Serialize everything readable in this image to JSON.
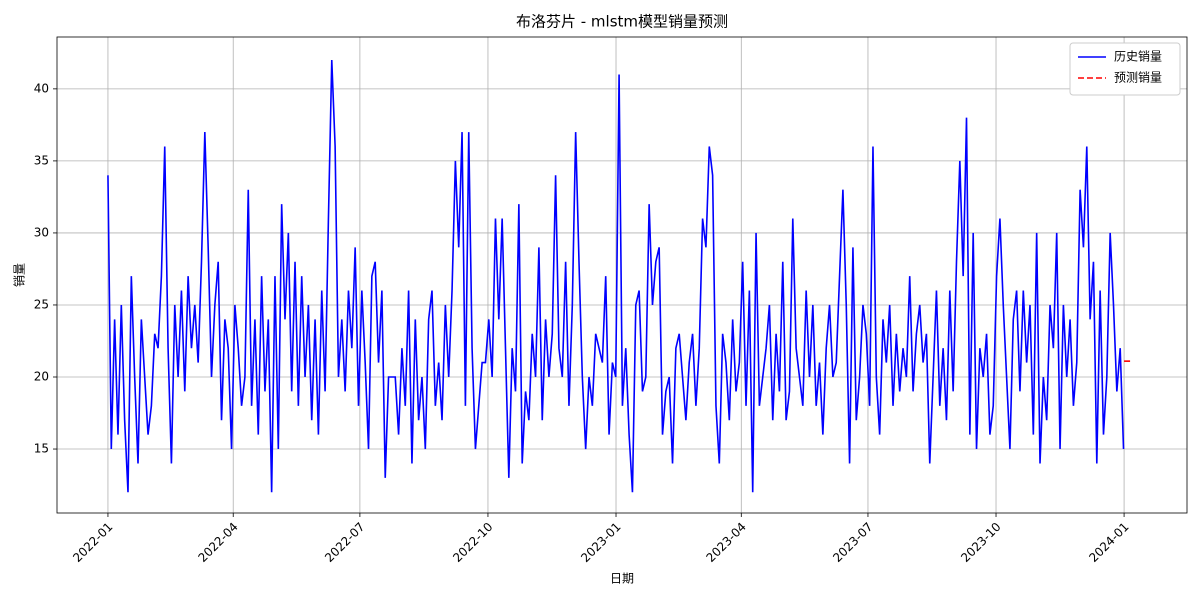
{
  "chart_data": {
    "type": "line",
    "title": "布洛芬片 - mlstm模型销量预测",
    "x_label": "日期",
    "y_label": "销量",
    "grid": true,
    "legend": "upper right",
    "xlim": [
      -36.6,
      775.2
    ],
    "ylim": [
      10.56,
      43.6
    ],
    "xticks": [
      {
        "value": 0,
        "label": "2022-01"
      },
      {
        "value": 90,
        "label": "2022-04"
      },
      {
        "value": 181,
        "label": "2022-07"
      },
      {
        "value": 273,
        "label": "2022-10"
      },
      {
        "value": 365,
        "label": "2023-01"
      },
      {
        "value": 455,
        "label": "2023-04"
      },
      {
        "value": 546,
        "label": "2023-07"
      },
      {
        "value": 638,
        "label": "2023-10"
      },
      {
        "value": 730,
        "label": "2024-01"
      }
    ],
    "yticks": [
      15,
      20,
      25,
      30,
      35,
      40
    ],
    "series": [
      {
        "name": "历史销量",
        "color": "#0000ff",
        "dash": "solid",
        "x": [
          0,
          2.4,
          4.8,
          7.2,
          9.6,
          12,
          14.4,
          16.8,
          19.2,
          21.6,
          24,
          26.4,
          28.8,
          31.2,
          33.6,
          36,
          38.4,
          40.8,
          43.2,
          45.6,
          48,
          50.4,
          52.8,
          55.2,
          57.6,
          60,
          62.4,
          64.8,
          67.2,
          69.6,
          72,
          74.4,
          76.8,
          79.2,
          81.6,
          84,
          86.4,
          88.8,
          91.2,
          93.6,
          96,
          98.4,
          100.8,
          103.2,
          105.6,
          108,
          110.4,
          112.8,
          115.2,
          117.6,
          120,
          122.4,
          124.8,
          127.2,
          129.6,
          132,
          134.4,
          136.8,
          139.2,
          141.6,
          144,
          146.4,
          148.8,
          151.2,
          153.6,
          156,
          158.4,
          160.8,
          163.2,
          165.6,
          168,
          170.4,
          172.8,
          175.2,
          177.6,
          180,
          182.4,
          184.8,
          187.2,
          189.6,
          192,
          194.4,
          196.8,
          199.2,
          201.6,
          204,
          206.4,
          208.8,
          211.2,
          213.6,
          216,
          218.4,
          220.8,
          223.2,
          225.6,
          228,
          230.4,
          232.8,
          235.2,
          237.6,
          240,
          242.4,
          244.8,
          247.2,
          249.6,
          252,
          254.4,
          256.8,
          259.2,
          261.6,
          264,
          266.4,
          268.8,
          271.2,
          273.6,
          276,
          278.4,
          280.8,
          283.2,
          285.6,
          288,
          290.4,
          292.8,
          295.2,
          297.6,
          300,
          302.4,
          304.8,
          307.2,
          309.6,
          312,
          314.4,
          316.8,
          319.2,
          321.6,
          324,
          326.4,
          328.8,
          331.2,
          333.6,
          336,
          338.4,
          340.8,
          343.2,
          345.6,
          348,
          350.4,
          352.8,
          355.2,
          357.6,
          360,
          362.4,
          364.8,
          367.2,
          369.6,
          372,
          374.4,
          376.8,
          379.2,
          381.6,
          384,
          386.4,
          388.8,
          391.2,
          393.6,
          396,
          398.4,
          400.8,
          403.2,
          405.6,
          408,
          410.4,
          412.8,
          415.2,
          417.6,
          420,
          422.4,
          424.8,
          427.2,
          429.6,
          432,
          434.4,
          436.8,
          439.2,
          441.6,
          444,
          446.4,
          448.8,
          451.2,
          453.6,
          456,
          458.4,
          460.8,
          463.2,
          465.6,
          468,
          470.4,
          472.8,
          475.2,
          477.6,
          480,
          482.4,
          484.8,
          487.2,
          489.6,
          492,
          494.4,
          496.8,
          499.2,
          501.6,
          504,
          506.4,
          508.8,
          511.2,
          513.6,
          516,
          518.4,
          520.8,
          523.2,
          525.6,
          528,
          530.4,
          532.8,
          535.2,
          537.6,
          540,
          542.4,
          544.8,
          547.2,
          549.6,
          552,
          554.4,
          556.8,
          559.2,
          561.6,
          564,
          566.4,
          568.8,
          571.2,
          573.6,
          576,
          578.4,
          580.8,
          583.2,
          585.6,
          588,
          590.4,
          592.8,
          595.2,
          597.6,
          600,
          602.4,
          604.8,
          607.2,
          609.6,
          612,
          614.4,
          616.8,
          619.2,
          621.6,
          624,
          626.4,
          628.8,
          631.2,
          633.6,
          636,
          638.4,
          640.8,
          643.2,
          645.6,
          648,
          650.4,
          652.8,
          655.2,
          657.6,
          660,
          662.4,
          664.8,
          667.2,
          669.6,
          672,
          674.4,
          676.8,
          679.2,
          681.6,
          684,
          686.4,
          688.8,
          691.2,
          693.6,
          696,
          698.4,
          700.8,
          703.2,
          705.6,
          708,
          710.4,
          712.8,
          715.2,
          717.6,
          720,
          722.4,
          724.8,
          727.2,
          729.6
        ],
        "values": [
          34,
          15,
          24,
          16,
          25,
          17,
          12,
          27,
          20,
          14,
          24,
          20,
          16,
          18,
          23,
          22,
          27,
          36,
          22,
          14,
          25,
          20,
          26,
          19,
          27,
          22,
          25,
          21,
          28,
          37,
          29,
          20,
          25,
          28,
          17,
          24,
          22,
          15,
          25,
          22,
          18,
          20,
          33,
          18,
          24,
          16,
          27,
          19,
          24,
          12,
          27,
          15,
          32,
          24,
          30,
          19,
          28,
          18,
          27,
          20,
          25,
          17,
          24,
          16,
          26,
          19,
          31,
          42,
          36,
          20,
          24,
          19,
          26,
          22,
          29,
          18,
          26,
          21,
          15,
          27,
          28,
          21,
          26,
          13,
          20,
          20,
          20,
          16,
          22,
          18,
          26,
          14,
          24,
          17,
          20,
          15,
          24,
          26,
          18,
          21,
          17,
          25,
          20,
          26,
          35,
          29,
          37,
          18,
          37,
          22,
          15,
          18,
          21,
          21,
          24,
          20,
          31,
          24,
          31,
          22,
          13,
          22,
          19,
          32,
          14,
          19,
          17,
          23,
          20,
          29,
          17,
          24,
          20,
          23,
          34,
          22,
          20,
          28,
          18,
          25,
          37,
          28,
          20,
          15,
          20,
          18,
          23,
          22,
          21,
          27,
          16,
          21,
          20,
          41,
          18,
          22,
          16,
          12,
          25,
          26,
          19,
          20,
          32,
          25,
          28,
          29,
          16,
          19,
          20,
          14,
          22,
          23,
          20,
          17,
          21,
          23,
          18,
          22,
          31,
          29,
          36,
          34,
          18,
          14,
          23,
          21,
          17,
          24,
          19,
          21,
          28,
          18,
          26,
          12,
          30,
          18,
          20,
          22,
          25,
          17,
          23,
          19,
          28,
          17,
          19,
          31,
          22,
          20,
          18,
          26,
          20,
          25,
          18,
          21,
          16,
          22,
          25,
          20,
          21,
          27,
          33,
          25,
          14,
          29,
          17,
          20,
          25,
          23,
          18,
          36,
          20,
          16,
          24,
          21,
          25,
          18,
          23,
          19,
          22,
          20,
          27,
          19,
          23,
          25,
          21,
          23,
          14,
          20,
          26,
          18,
          22,
          17,
          26,
          19,
          28,
          35,
          27,
          38,
          16,
          30,
          15,
          22,
          20,
          23,
          16,
          18,
          27,
          31,
          25,
          20,
          15,
          24,
          26,
          19,
          26,
          21,
          25,
          16,
          30,
          14,
          20,
          17,
          25,
          22,
          30,
          15,
          25,
          20,
          24,
          18,
          21,
          33,
          29,
          36,
          24,
          28,
          14,
          26,
          16,
          20,
          30,
          25,
          19,
          22,
          15
        ]
      },
      {
        "name": "预测销量",
        "color": "#ff0000",
        "dash": "dashed",
        "x": [
          730,
          736
        ],
        "values": [
          21.1,
          21.1
        ]
      }
    ]
  }
}
